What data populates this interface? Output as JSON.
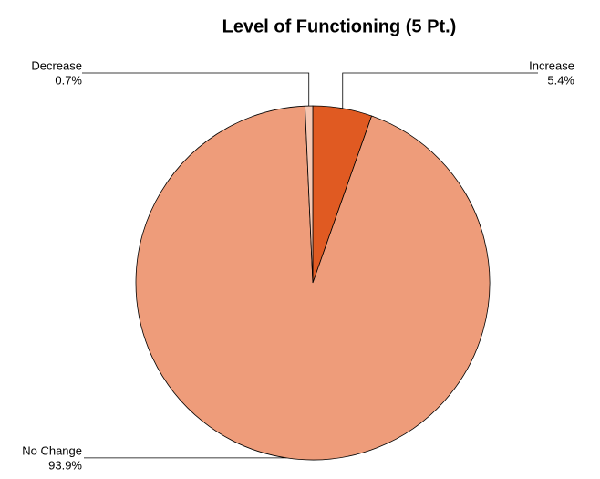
{
  "chart_data": {
    "type": "pie",
    "title": "Level of Functioning (5 Pt.)",
    "categories": [
      "Increase",
      "No Change",
      "Decrease"
    ],
    "values": [
      5.4,
      93.9,
      0.7
    ],
    "value_labels": [
      "5.4%",
      "93.9%",
      "0.7%"
    ],
    "colors": [
      "#e05a22",
      "#ee9c7a",
      "#f6c8b4"
    ]
  }
}
